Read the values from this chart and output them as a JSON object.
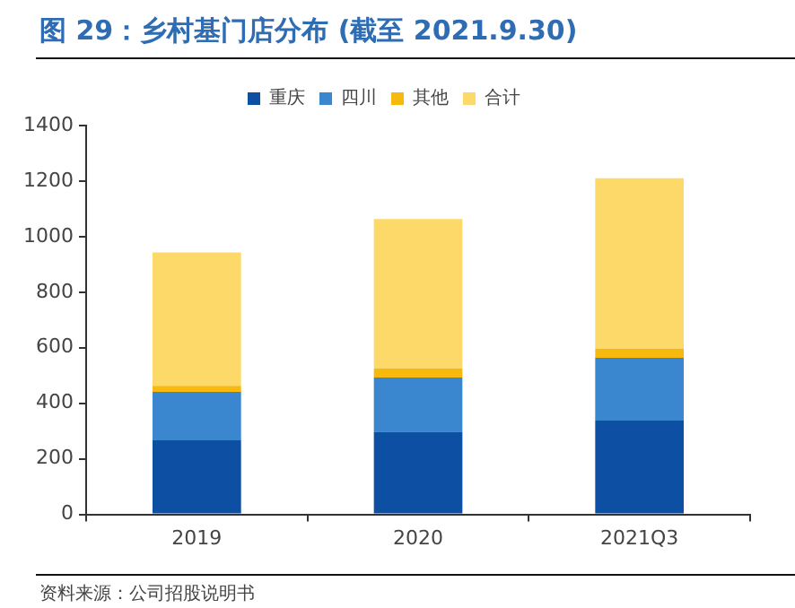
{
  "chart_data": {
    "type": "bar",
    "title": "图 29：乡村基门店分布 (截至 2021.9.30)",
    "categories": [
      "2019",
      "2020",
      "2021Q3"
    ],
    "stacked": true,
    "series": [
      {
        "name": "重庆",
        "color": "#0d4fa3",
        "values": [
          267,
          297,
          338
        ]
      },
      {
        "name": "四川",
        "color": "#3a86cf",
        "values": [
          174,
          196,
          226
        ]
      },
      {
        "name": "其他",
        "color": "#f8b90f",
        "values": [
          22,
          33,
          33
        ]
      },
      {
        "name": "合计",
        "color": "#fdd96a",
        "values": [
          480,
          537,
          613
        ]
      }
    ],
    "ylim": [
      0,
      1400
    ],
    "yticks": [
      0,
      200,
      400,
      600,
      800,
      1000,
      1200,
      1400
    ],
    "grid": false,
    "legend": "top",
    "annotations": [
      "资料来源：公司招股说明书"
    ]
  }
}
